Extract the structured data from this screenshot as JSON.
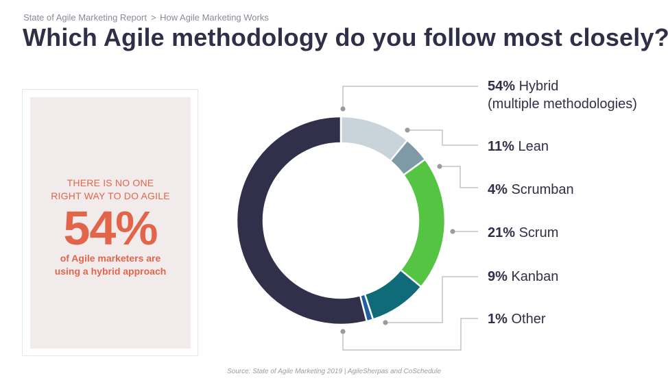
{
  "breadcrumb": {
    "section": "State of Agile Marketing Report",
    "separator": ">",
    "page": "How Agile Marketing Works"
  },
  "title": "Which Agile methodology do you follow most closely?",
  "callout": {
    "headline_line1": "THERE IS NO ONE",
    "headline_line2": "RIGHT WAY TO DO AGILE",
    "big_number": "54%",
    "sub_line1": "of Agile marketers are",
    "sub_line2": "using a hybrid approach"
  },
  "source": "Source: State of Agile Marketing 2019 | AgileSherpas and CoSchedule",
  "colors": {
    "accent": "#e2654a",
    "title": "#2f2f47",
    "leader_line": "#b8b8be"
  },
  "chart_data": {
    "type": "pie",
    "style": "donut",
    "categories": [
      "Hybrid (multiple methodologies)",
      "Lean",
      "Scrumban",
      "Scrum",
      "Kanban",
      "Other"
    ],
    "values": [
      54,
      11,
      4,
      21,
      9,
      1
    ],
    "series": [
      {
        "pct": "54%",
        "name": "Hybrid",
        "name_line2": "(multiple methodologies)",
        "value": 54,
        "color": "#31304a"
      },
      {
        "pct": "11%",
        "name": "Lean",
        "value": 11,
        "color": "#c9d3da"
      },
      {
        "pct": "4%",
        "name": "Scrumban",
        "value": 4,
        "color": "#7e9aa7"
      },
      {
        "pct": "21%",
        "name": "Scrum",
        "value": 21,
        "color": "#55c443"
      },
      {
        "pct": "9%",
        "name": "Kanban",
        "value": 9,
        "color": "#0f6b77"
      },
      {
        "pct": "1%",
        "name": "Other",
        "value": 1,
        "color": "#1f5fa8"
      }
    ],
    "legend_position": "right"
  }
}
